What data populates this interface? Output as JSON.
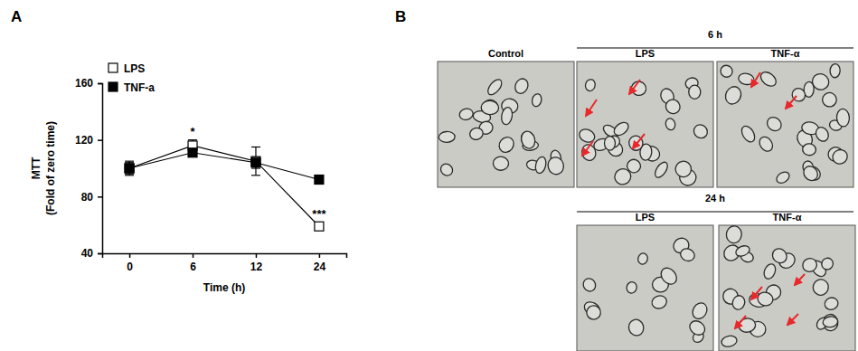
{
  "panel_labels": [
    "A",
    "B"
  ],
  "chart_data": {
    "type": "line",
    "categories": [
      "0",
      "6",
      "12",
      "24"
    ],
    "x_label": "Time (h)",
    "y_label": [
      "MTT",
      "(Fold of zero time)"
    ],
    "ylim": [
      40,
      160
    ],
    "yticks": [
      40,
      80,
      120,
      160
    ],
    "legend": "top-left",
    "series": [
      {
        "name": "LPS",
        "color": "#000000",
        "marker": "open-square",
        "values": [
          100,
          116,
          105,
          59
        ],
        "errors": [
          5,
          4,
          10,
          2
        ]
      },
      {
        "name": "TNF-a",
        "color": "#000000",
        "marker": "square",
        "values": [
          100,
          111,
          104,
          92
        ],
        "errors": [
          4,
          2,
          4,
          2
        ]
      }
    ],
    "annotations": [
      {
        "text": "*",
        "x": "6",
        "y": 123
      },
      {
        "text": "***",
        "x": "24",
        "y": 65
      }
    ]
  },
  "image_panel": {
    "control": "Control",
    "groups": [
      {
        "title": "6 h",
        "labels": [
          "LPS",
          "TNF-α"
        ]
      },
      {
        "title": "24 h",
        "labels": [
          "LPS",
          "TNF-α"
        ]
      }
    ]
  }
}
